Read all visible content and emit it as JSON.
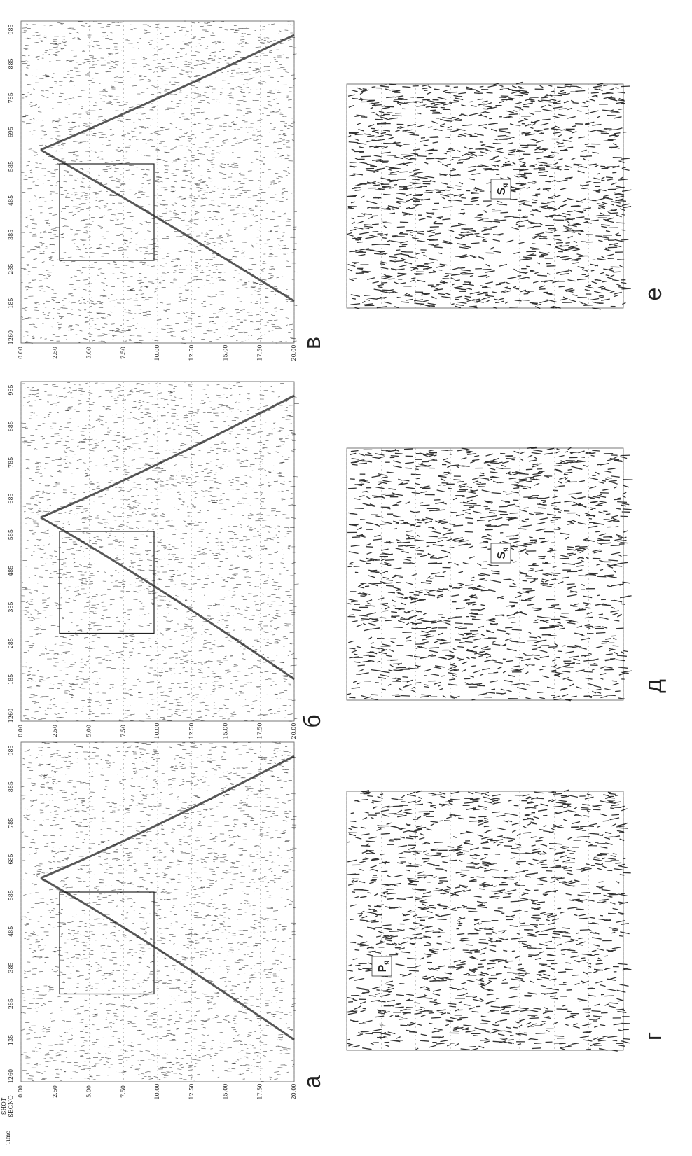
{
  "panels": [
    {
      "letter": "а",
      "traces": [
        "1260",
        "135",
        "285",
        "385",
        "485",
        "585",
        "685",
        "785",
        "885",
        "985"
      ],
      "times": [
        "0.00",
        "2.50",
        "5.00",
        "7.50",
        "10.00",
        "12.50",
        "15.00",
        "17.50",
        "20.00"
      ]
    },
    {
      "letter": "б",
      "traces": [
        "1260",
        "185",
        "285",
        "385",
        "485",
        "585",
        "685",
        "785",
        "885",
        "985"
      ],
      "times": [
        "0.00",
        "2.50",
        "5.00",
        "7.50",
        "10.00",
        "12.50",
        "15.00",
        "17.50",
        "20.00"
      ]
    },
    {
      "letter": "в",
      "traces": [
        "1260",
        "185",
        "285",
        "385",
        "485",
        "585",
        "695",
        "785",
        "885",
        "985"
      ],
      "times": [
        "0.00",
        "2.50",
        "5.00",
        "7.50",
        "10.00",
        "12.50",
        "15.00",
        "17.50",
        "20.00"
      ]
    }
  ],
  "axis_labels": {
    "shot": "SHOT",
    "segno": "SEGNO",
    "time": "Time"
  },
  "insets": [
    {
      "letter": "г",
      "phase": "P",
      "subscript": "g"
    },
    {
      "letter": "д",
      "phase": "S",
      "subscript": "g"
    },
    {
      "letter": "е",
      "phase": "S",
      "subscript": "g"
    }
  ]
}
